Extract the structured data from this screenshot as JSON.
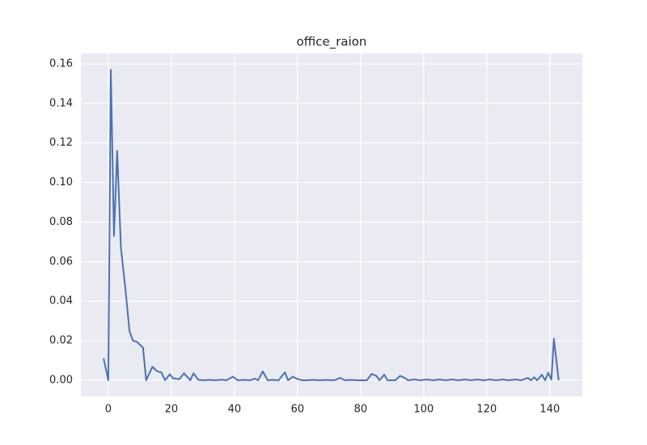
{
  "chart_data": {
    "type": "line",
    "title": "office_raion",
    "x": [
      -1.5,
      0,
      0.8,
      1.8,
      2.8,
      4,
      5.5,
      6.7,
      7.8,
      9,
      11,
      12,
      14,
      15.5,
      16.8,
      18,
      19.5,
      20.5,
      22.5,
      24,
      26,
      27,
      28.5,
      30,
      32,
      34,
      36,
      37.5,
      39.5,
      41,
      43,
      45,
      46.5,
      47.5,
      49,
      50.5,
      52,
      54,
      56,
      57,
      58.5,
      60,
      61.5,
      63,
      65,
      67,
      69,
      71,
      72,
      73.5,
      75,
      77,
      79,
      82,
      83.5,
      85,
      86,
      87.5,
      88.5,
      91,
      92.5,
      94,
      95,
      97,
      99,
      101,
      103,
      105,
      107,
      109,
      111,
      113,
      115,
      117,
      119,
      121,
      123,
      125,
      127,
      129,
      131,
      133,
      134,
      135,
      136,
      137.5,
      138.5,
      139.5,
      140.5,
      141.3,
      142.8
    ],
    "series": [
      {
        "name": "office_raion",
        "color": "#4c72b0",
        "values": [
          0.011,
          0,
          0.157,
          0.073,
          0.116,
          0.067,
          0.045,
          0.025,
          0.02,
          0.0195,
          0.0165,
          0,
          0.0068,
          0.0045,
          0.004,
          0,
          0.003,
          0.001,
          0.0005,
          0.0035,
          0,
          0.0035,
          0.0003,
          0,
          0.0002,
          0,
          0.0003,
          0,
          0.0018,
          0,
          0.0002,
          0,
          0.0008,
          0,
          0.0045,
          0,
          0.0002,
          0,
          0.004,
          0,
          0.0018,
          0.0006,
          0,
          0,
          0.0002,
          0,
          0.0002,
          0,
          0.0002,
          0.0012,
          0,
          0.0002,
          0,
          0,
          0.0032,
          0.0022,
          0,
          0.0028,
          0,
          0,
          0.0022,
          0.0012,
          0,
          0.0004,
          0,
          0.0004,
          0,
          0.0004,
          0,
          0.0004,
          0,
          0.0004,
          0,
          0.0004,
          0,
          0.0004,
          0,
          0.0004,
          0,
          0.0004,
          0,
          0.0012,
          0,
          0.0015,
          0,
          0.0028,
          0,
          0.0038,
          0.0003,
          0.021,
          0
        ]
      }
    ],
    "xlim": [
      -8.7,
      150.3
    ],
    "ylim": [
      -0.0082,
      0.1653
    ],
    "xticks": [
      0,
      20,
      40,
      60,
      80,
      100,
      120,
      140
    ],
    "yticks": [
      {
        "value": 0,
        "label": "0.00"
      },
      {
        "value": 0.02,
        "label": "0.02"
      },
      {
        "value": 0.04,
        "label": "0.04"
      },
      {
        "value": 0.06,
        "label": "0.06"
      },
      {
        "value": 0.08,
        "label": "0.08"
      },
      {
        "value": 0.1,
        "label": "0.10"
      },
      {
        "value": 0.12,
        "label": "0.12"
      },
      {
        "value": 0.14,
        "label": "0.14"
      },
      {
        "value": 0.16,
        "label": "0.16"
      }
    ],
    "grid": true
  }
}
